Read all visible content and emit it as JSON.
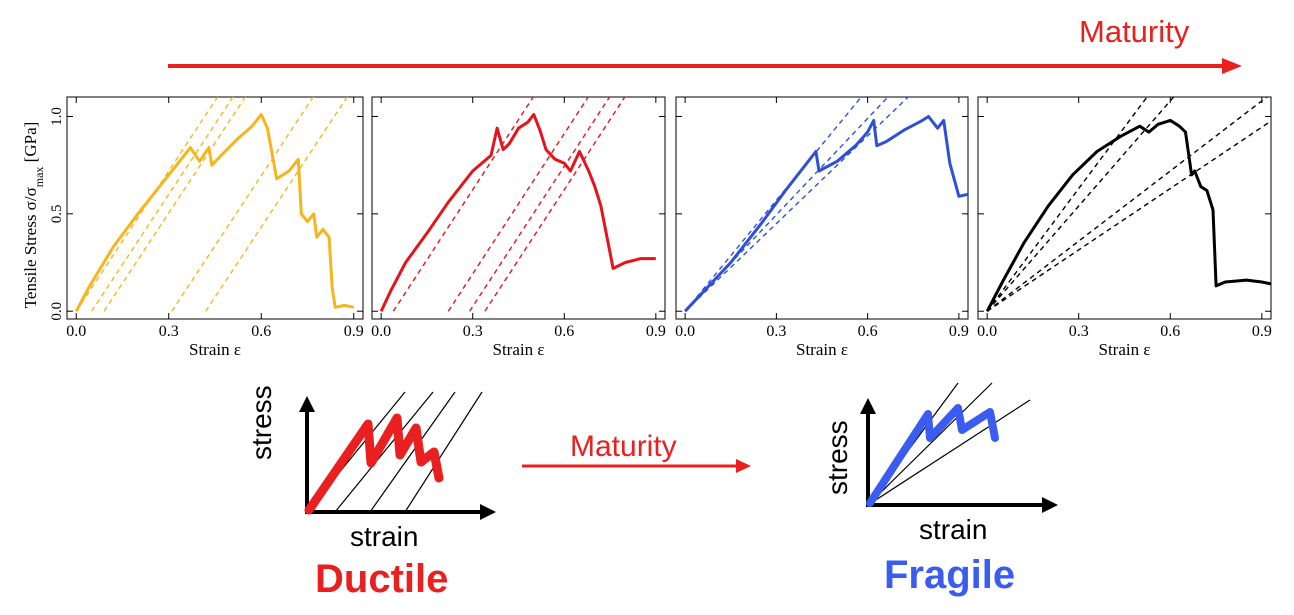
{
  "top_title": "Maturity",
  "middle_title": "Maturity",
  "sketches": {
    "left": {
      "label": "Ductile",
      "xlabel": "strain",
      "ylabel": "stress",
      "color": "#ea1f1f"
    },
    "right": {
      "label": "Fragile",
      "xlabel": "strain",
      "ylabel": "stress",
      "color": "#3a5cf0"
    }
  },
  "colors": {
    "arrow": "#e8211e"
  },
  "chart_data": [
    {
      "type": "line",
      "ylabel": "Tensile Stress σ/σmax [GPa]",
      "xlabel": "Strain ε",
      "xlim": [
        -0.03,
        0.93
      ],
      "ylim": [
        -0.04,
        1.1
      ],
      "xticks": [
        "0.0",
        "0.3",
        "0.6",
        "0.9"
      ],
      "yticks": [
        "0.0",
        "0.5",
        "1.0"
      ],
      "color": "#f5b51c",
      "series": [
        {
          "name": "stress-strain",
          "x": [
            0.0,
            0.04,
            0.12,
            0.2,
            0.28,
            0.35,
            0.37,
            0.4,
            0.43,
            0.44,
            0.47,
            0.52,
            0.57,
            0.6,
            0.62,
            0.65,
            0.69,
            0.72,
            0.73,
            0.75,
            0.77,
            0.78,
            0.8,
            0.82,
            0.83,
            0.84,
            0.87,
            0.9
          ],
          "y": [
            0.0,
            0.12,
            0.33,
            0.5,
            0.66,
            0.8,
            0.84,
            0.77,
            0.84,
            0.75,
            0.8,
            0.88,
            0.95,
            1.01,
            0.94,
            0.68,
            0.72,
            0.78,
            0.5,
            0.46,
            0.5,
            0.38,
            0.42,
            0.38,
            0.12,
            0.02,
            0.03,
            0.02
          ]
        }
      ],
      "reference_lines": [
        {
          "x0": 0.0,
          "slope": 2.4
        },
        {
          "x0": 0.05,
          "slope": 2.4
        },
        {
          "x0": 0.09,
          "slope": 2.4
        },
        {
          "x0": 0.31,
          "slope": 2.4
        },
        {
          "x0": 0.42,
          "slope": 2.4
        }
      ]
    },
    {
      "type": "line",
      "ylabel": "",
      "xlabel": "Strain ε",
      "xlim": [
        -0.03,
        0.93
      ],
      "ylim": [
        -0.04,
        1.1
      ],
      "xticks": [
        "0.0",
        "0.3",
        "0.6",
        "0.9"
      ],
      "yticks": [],
      "color": "#e6131c",
      "series": [
        {
          "name": "stress-strain",
          "x": [
            0.0,
            0.03,
            0.08,
            0.15,
            0.22,
            0.3,
            0.36,
            0.38,
            0.4,
            0.42,
            0.45,
            0.48,
            0.5,
            0.52,
            0.54,
            0.57,
            0.6,
            0.62,
            0.65,
            0.68,
            0.7,
            0.72,
            0.76,
            0.8,
            0.85,
            0.9
          ],
          "y": [
            0.0,
            0.1,
            0.25,
            0.4,
            0.56,
            0.72,
            0.8,
            0.94,
            0.83,
            0.86,
            0.94,
            0.97,
            1.01,
            0.93,
            0.83,
            0.78,
            0.76,
            0.72,
            0.82,
            0.72,
            0.64,
            0.54,
            0.22,
            0.25,
            0.27,
            0.27
          ]
        }
      ],
      "reference_lines": [
        {
          "x0": 0.04,
          "slope": 2.4
        },
        {
          "x0": 0.22,
          "slope": 2.4
        },
        {
          "x0": 0.29,
          "slope": 2.4
        },
        {
          "x0": 0.34,
          "slope": 2.4
        }
      ]
    },
    {
      "type": "line",
      "ylabel": "",
      "xlabel": "Strain ε",
      "xlim": [
        -0.03,
        0.93
      ],
      "ylim": [
        -0.04,
        1.1
      ],
      "xticks": [
        "0.0",
        "0.3",
        "0.6",
        "0.9"
      ],
      "yticks": [],
      "color": "#2f4fd8",
      "series": [
        {
          "name": "stress-strain",
          "x": [
            0.0,
            0.06,
            0.15,
            0.25,
            0.33,
            0.4,
            0.43,
            0.44,
            0.5,
            0.56,
            0.6,
            0.62,
            0.63,
            0.66,
            0.72,
            0.78,
            0.8,
            0.83,
            0.85,
            0.87,
            0.9,
            0.93
          ],
          "y": [
            0.0,
            0.1,
            0.25,
            0.45,
            0.62,
            0.76,
            0.82,
            0.72,
            0.77,
            0.85,
            0.92,
            0.98,
            0.85,
            0.87,
            0.93,
            0.98,
            1.0,
            0.94,
            0.98,
            0.76,
            0.59,
            0.6
          ]
        }
      ],
      "reference_lines": [
        {
          "x0": 0.0,
          "slope": 1.9
        },
        {
          "x0": 0.0,
          "slope": 1.65
        },
        {
          "x0": 0.0,
          "slope": 1.5
        }
      ]
    },
    {
      "type": "line",
      "ylabel": "",
      "xlabel": "Strain ε",
      "xlim": [
        -0.03,
        0.93
      ],
      "ylim": [
        -0.04,
        1.1
      ],
      "xticks": [
        "0.0",
        "0.3",
        "0.6",
        "0.9"
      ],
      "yticks": [],
      "color": "#000000",
      "series": [
        {
          "name": "stress-strain",
          "x": [
            0.0,
            0.05,
            0.12,
            0.2,
            0.28,
            0.36,
            0.44,
            0.5,
            0.53,
            0.56,
            0.6,
            0.63,
            0.65,
            0.67,
            0.68,
            0.7,
            0.72,
            0.74,
            0.75,
            0.78,
            0.85,
            0.9,
            0.93
          ],
          "y": [
            0.0,
            0.15,
            0.35,
            0.54,
            0.7,
            0.82,
            0.9,
            0.95,
            0.92,
            0.96,
            0.98,
            0.95,
            0.92,
            0.7,
            0.72,
            0.64,
            0.62,
            0.52,
            0.13,
            0.15,
            0.16,
            0.15,
            0.14
          ]
        }
      ],
      "reference_lines": [
        {
          "x0": 0.0,
          "slope": 2.1
        },
        {
          "x0": 0.0,
          "slope": 1.8
        },
        {
          "x0": 0.0,
          "slope": 1.2
        },
        {
          "x0": 0.0,
          "slope": 1.05
        }
      ]
    }
  ]
}
